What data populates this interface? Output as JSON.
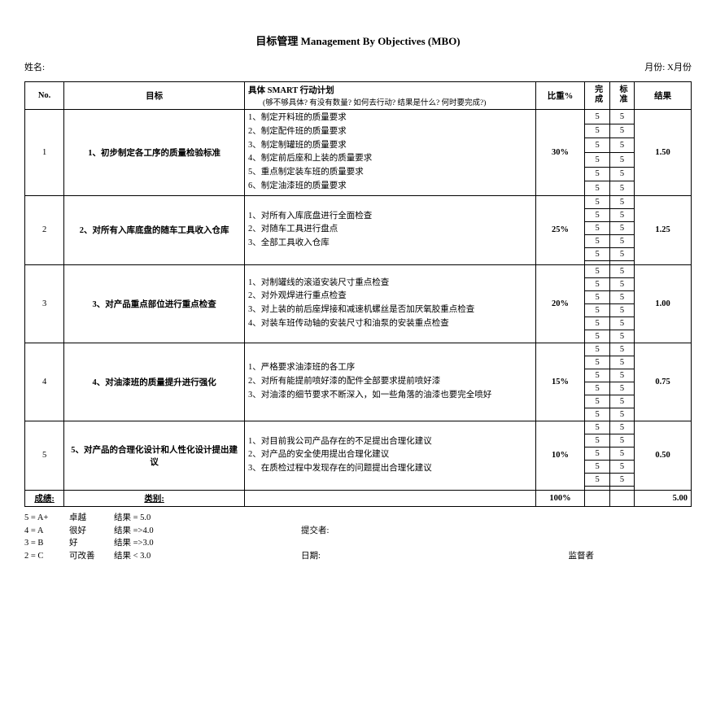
{
  "title": "目标管理 Management By Objectives (MBO)",
  "meta": {
    "name_label": "姓名:",
    "month_label": "月份:",
    "month_value": "X月份"
  },
  "header": {
    "no": "No.",
    "objective": "目标",
    "plan_title": "具体 SMART 行动计划",
    "plan_sub": "(够不够具体?  有没有数量?  如何去行动?  结果是什么?  何时要完成?)",
    "weight": "比重%",
    "col1": "完成",
    "col2": "标准",
    "result": "结果"
  },
  "rows": [
    {
      "no": "1",
      "objective": "1、初步制定各工序的质量检验标准",
      "plans": [
        "1、制定开料班的质量要求",
        "2、制定配件班的质量要求",
        "3、制定制罐班的质量要求",
        "4、制定前后座和上装的质量要求",
        "5、重点制定装车班的质量要求",
        "6、制定油漆班的质量要求"
      ],
      "weight": "30%",
      "scores": [
        [
          "5",
          "5"
        ],
        [
          "5",
          "5"
        ],
        [
          "5",
          "5"
        ],
        [
          "5",
          "5"
        ],
        [
          "5",
          "5"
        ],
        [
          "5",
          "5"
        ]
      ],
      "result": "1.50"
    },
    {
      "no": "2",
      "objective": "2、对所有入库底盘的随车工具收入仓库",
      "plans": [
        "1、对所有入库底盘进行全面检查",
        "2、对随车工具进行盘点",
        "3、全部工具收入仓库"
      ],
      "weight": "25%",
      "scores": [
        [
          "5",
          "5"
        ],
        [
          "5",
          "5"
        ],
        [
          "5",
          "5"
        ],
        [
          "5",
          "5"
        ],
        [
          "5",
          "5"
        ],
        [
          "",
          ""
        ]
      ],
      "result": "1.25"
    },
    {
      "no": "3",
      "objective": "3、对产品重点部位进行重点检查",
      "plans": [
        "1、对制罐线的滚道安装尺寸重点检查",
        "2、对外观焊进行重点检查",
        "3、对上装的前后座焊接和减速机螺丝是否加厌氧胶重点检查",
        "4、对装车班传动轴的安装尺寸和油泵的安装重点检查"
      ],
      "weight": "20%",
      "scores": [
        [
          "5",
          "5"
        ],
        [
          "5",
          "5"
        ],
        [
          "5",
          "5"
        ],
        [
          "5",
          "5"
        ],
        [
          "5",
          "5"
        ],
        [
          "5",
          "5"
        ]
      ],
      "result": "1.00"
    },
    {
      "no": "4",
      "objective": "4、对油漆班的质量提升进行强化",
      "plans": [
        "1、严格要求油漆班的各工序",
        "2、对所有能提前喷好漆的配件全部要求提前喷好漆",
        "3、对油漆的细节要求不断深入，如一些角落的油漆也要完全喷好"
      ],
      "weight": "15%",
      "scores": [
        [
          "5",
          "5"
        ],
        [
          "5",
          "5"
        ],
        [
          "5",
          "5"
        ],
        [
          "5",
          "5"
        ],
        [
          "5",
          "5"
        ],
        [
          "5",
          "5"
        ]
      ],
      "result": "0.75"
    },
    {
      "no": "5",
      "objective": "5、对产品的合理化设计和人性化设计提出建议",
      "plans": [
        "1、对目前我公司产品存在的不足提出合理化建议",
        "2、对产品的安全使用提出合理化建议",
        "3、在质检过程中发现存在的问题提出合理化建议"
      ],
      "weight": "10%",
      "scores": [
        [
          "5",
          "5"
        ],
        [
          "5",
          "5"
        ],
        [
          "5",
          "5"
        ],
        [
          "5",
          "5"
        ],
        [
          "5",
          "5"
        ],
        [
          "",
          ""
        ]
      ],
      "result": "0.50"
    }
  ],
  "total": {
    "label": "成绩:",
    "category": "类别:",
    "weight_sum": "100%",
    "result_sum": "5.00"
  },
  "legend": [
    {
      "code": "5 = A+",
      "grade": "卓越",
      "desc": "结果 = 5.0",
      "extra1": "",
      "extra2": ""
    },
    {
      "code": "4 = A",
      "grade": "很好",
      "desc": "结果 =>4.0",
      "extra1": "提交者:",
      "extra2": ""
    },
    {
      "code": "3 = B",
      "grade": "好",
      "desc": "结果 =>3.0",
      "extra1": "",
      "extra2": ""
    },
    {
      "code": "2 = C",
      "grade": "可改善",
      "desc": "结果 < 3.0",
      "extra1": "日期:",
      "extra2": "监督者"
    }
  ]
}
